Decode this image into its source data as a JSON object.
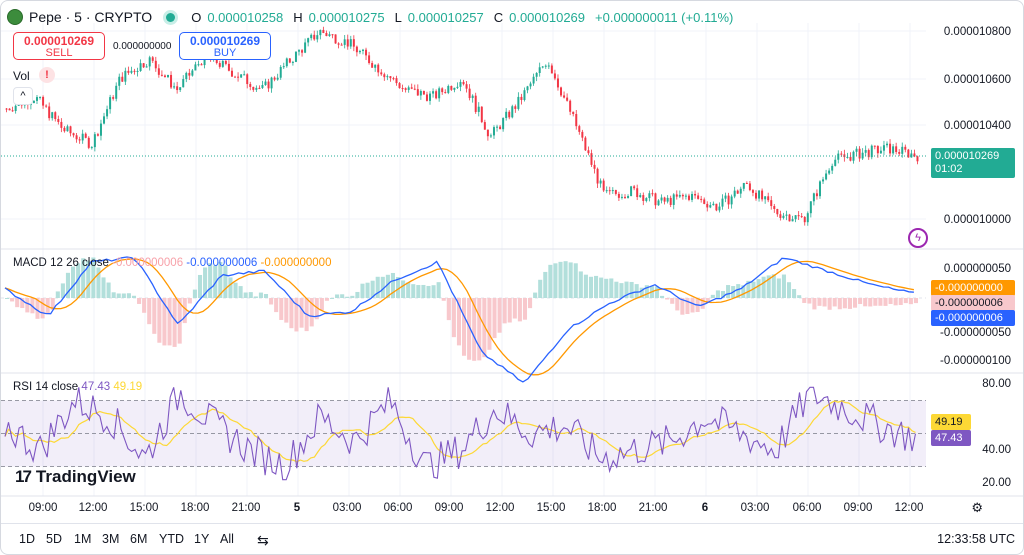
{
  "legend": {
    "symbol": "Pepe · 5 · CRYPTO",
    "open_key": "O",
    "open": "0.000010258",
    "high_key": "H",
    "high": "0.000010275",
    "low_key": "L",
    "low": "0.000010257",
    "close_key": "C",
    "close": "0.000010269",
    "change": "+0.000000011 (+0.11%)"
  },
  "trade": {
    "sell_price": "0.000010269",
    "sell_label": "SELL",
    "buy_price": "0.000010269",
    "buy_label": "BUY",
    "spread": "0.000000000"
  },
  "volume": {
    "label": "Vol",
    "warning": "!"
  },
  "price_axis": [
    "0.000010800",
    "0.000010600",
    "0.000010400",
    "0.000010000"
  ],
  "price_tag": {
    "value": "0.000010269",
    "countdown": "01:02"
  },
  "macd": {
    "title": "MACD",
    "params": "12 26 close",
    "hist_value": "-0.000000006",
    "macd_value": "-0.000000006",
    "signal_value": "-0.000000000",
    "axis": [
      "0.000000050",
      "-0.000000050",
      "-0.000000100"
    ],
    "tag_orange": "-0.000000000",
    "tag_pink": "-0.000000006",
    "tag_blue": "-0.000000006"
  },
  "rsi": {
    "title": "RSI",
    "params": "14 close",
    "rsi_value": "47.43",
    "ma_value": "49.19",
    "axis": [
      "80.00",
      "40.00",
      "20.00"
    ],
    "tag_ma": "49.19",
    "tag_rsi": "47.43"
  },
  "brand": "TradingView",
  "time_axis": [
    {
      "label": "09:00",
      "bold": false
    },
    {
      "label": "12:00",
      "bold": false
    },
    {
      "label": "15:00",
      "bold": false
    },
    {
      "label": "18:00",
      "bold": false
    },
    {
      "label": "21:00",
      "bold": false
    },
    {
      "label": "5",
      "bold": true
    },
    {
      "label": "03:00",
      "bold": false
    },
    {
      "label": "06:00",
      "bold": false
    },
    {
      "label": "09:00",
      "bold": false
    },
    {
      "label": "12:00",
      "bold": false
    },
    {
      "label": "15:00",
      "bold": false
    },
    {
      "label": "18:00",
      "bold": false
    },
    {
      "label": "21:00",
      "bold": false
    },
    {
      "label": "6",
      "bold": true
    },
    {
      "label": "03:00",
      "bold": false
    },
    {
      "label": "06:00",
      "bold": false
    },
    {
      "label": "09:00",
      "bold": false
    },
    {
      "label": "12:00",
      "bold": false
    }
  ],
  "ranges": [
    "1D",
    "5D",
    "1M",
    "3M",
    "6M",
    "YTD",
    "1Y",
    "All"
  ],
  "clock": "12:33:58 UTC",
  "colors": {
    "up": "#22ab94",
    "down": "#f23645",
    "macd": "#2962ff",
    "signal": "#ff9800",
    "rsi": "#7e57c2",
    "rsi_ma": "#fdd835"
  },
  "chart_data": {
    "type": "line",
    "price_anchors": [
      10.47,
      10.52,
      10.38,
      10.32,
      10.6,
      10.68,
      10.55,
      10.7,
      10.62,
      10.55,
      10.68,
      10.8,
      10.75,
      10.65,
      10.55,
      10.52,
      10.6,
      10.35,
      10.5,
      10.68,
      10.4,
      10.1,
      10.12,
      10.07,
      10.1,
      10.05,
      10.15,
      10.03,
      10.0,
      10.25,
      10.28,
      10.3,
      10.27
    ],
    "price_scale": "x 1e-6",
    "macd_anchors": [
      10,
      -20,
      40,
      45,
      -30,
      25,
      30,
      -20,
      -15,
      20,
      40,
      -60,
      -95,
      -35,
      -5,
      15,
      -10,
      10,
      45,
      30,
      15,
      5
    ],
    "macd_scale": "x 1e-9",
    "rsi_anchors": [
      55,
      40,
      70,
      60,
      35,
      75,
      55,
      40,
      30,
      60,
      45,
      70,
      30,
      40,
      65,
      50,
      55,
      35,
      40,
      45,
      60,
      50,
      40,
      75,
      65,
      55,
      47
    ],
    "rsi_levels": [
      70,
      50,
      30
    ]
  }
}
